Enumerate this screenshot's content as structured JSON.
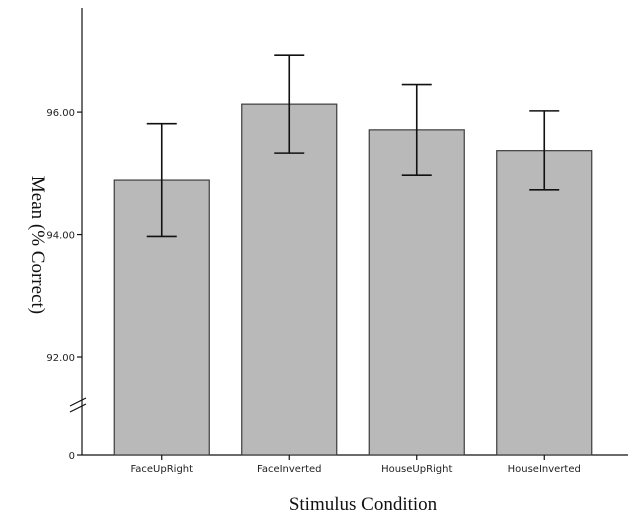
{
  "chart_data": {
    "type": "bar",
    "title": "",
    "xlabel": "Stimulus Condition",
    "ylabel": "Mean (% Correct)",
    "categories": [
      "FaceUpRight",
      "FaceInverted",
      "HouseUpRight",
      "HouseInverted"
    ],
    "values": [
      94.89,
      96.13,
      95.71,
      95.37
    ],
    "error_low": [
      93.97,
      95.33,
      94.97,
      94.73
    ],
    "error_high": [
      95.81,
      96.93,
      96.45,
      96.02
    ],
    "y_ticks": [
      92,
      94,
      96
    ],
    "y_tick_labels": [
      "92.00",
      "94.00",
      "96.00"
    ],
    "y_zero_label": "0",
    "ylim": [
      90.4,
      97.7
    ],
    "axis_break": true,
    "grid": false,
    "legend": "none",
    "colors": {
      "bar_fill": "#b9b9b9",
      "bar_stroke": "#3c3c3c",
      "error_bar": "#111111"
    }
  }
}
